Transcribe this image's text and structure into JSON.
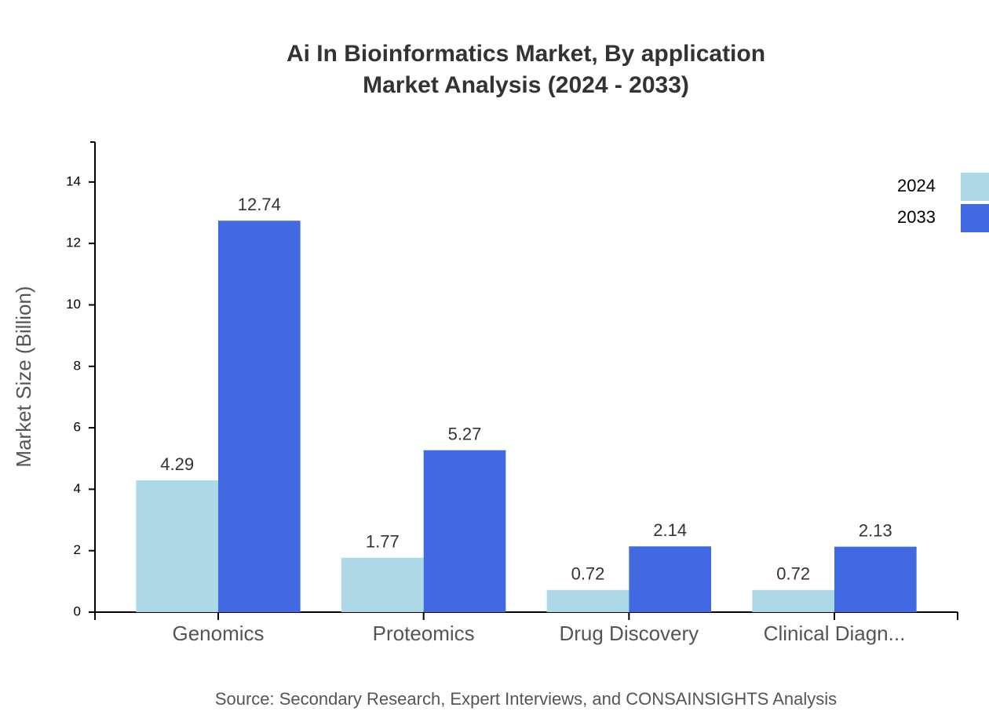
{
  "chart_data": {
    "type": "bar",
    "title": [
      "Ai In Bioinformatics Market, By application",
      "Market Analysis (2024 - 2033)"
    ],
    "y_label": "Market Size (Billion)",
    "source": "Source: Secondary Research, Expert Interviews, and CONSAINSIGHTS Analysis",
    "categories": [
      "Genomics",
      "Proteomics",
      "Drug Discovery",
      "Clinical Diagn..."
    ],
    "series": [
      {
        "name": "2024",
        "color": "#add8e6",
        "values": [
          4.29,
          1.77,
          0.72,
          0.72
        ]
      },
      {
        "name": "2033",
        "color": "#4169e1",
        "values": [
          12.74,
          5.27,
          2.14,
          2.13
        ]
      }
    ],
    "ylim": [
      0,
      15.3
    ],
    "yticks": [
      0,
      2,
      4,
      6,
      8,
      10,
      12,
      14
    ],
    "legend": "top-right"
  }
}
